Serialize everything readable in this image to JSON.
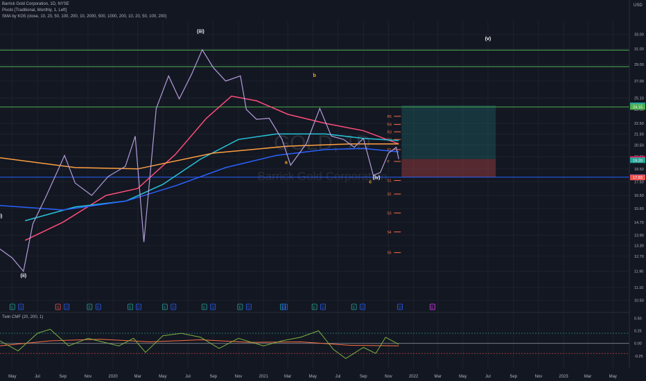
{
  "header": {
    "title": "Barrick Gold Corporation, 1D, NYSE",
    "pivots": "Pivots [Traditional, Monthly, 1, Left]",
    "sma": "SMA by KG5 (close, 10, 20, 50, 100, 200, 10, 2000, 500, 1000, 200, 10, 20, 50, 100, 200)",
    "currency": "USD"
  },
  "watermark": {
    "symbol": "GOLD, 1D",
    "name": "Barrick Gold Corporation"
  },
  "chart_data": {
    "type": "line",
    "title": "Barrick Gold Corporation, 1D, NYSE",
    "x_ticks": [
      "May",
      "Jul",
      "Sep",
      "Nov",
      "2020",
      "Mar",
      "May",
      "Jul",
      "Sep",
      "Nov",
      "2021",
      "Mar",
      "May",
      "Jul",
      "Sep",
      "Nov",
      "2022",
      "Mar",
      "May",
      "Jul",
      "Sep",
      "Nov",
      "2023",
      "Mar",
      "May"
    ],
    "y_ticks": [
      10.5,
      11.1,
      11.9,
      12.7,
      13.3,
      13.9,
      14.7,
      15.6,
      16.5,
      17.5,
      18.5,
      19.5,
      20.5,
      21.5,
      22.5,
      23.9,
      25.1,
      27.0,
      29.0,
      31.0,
      33.0
    ],
    "y_tick_labels": [
      "10.50",
      "11.10",
      "11.90",
      "12.70",
      "13.30",
      "13.90",
      "14.70",
      "15.60",
      "16.50",
      "17.50",
      "18.50",
      "19.50",
      "20.50",
      "21.50",
      "22.50",
      "23.90",
      "25.10",
      "27.00",
      "29.00",
      "31.00",
      "33.00"
    ],
    "ylim": [
      10.0,
      35.0
    ],
    "scale": "log",
    "price_series": [
      {
        "date": "2019-04-01",
        "close": 13.1
      },
      {
        "date": "2019-05-01",
        "close": 12.6
      },
      {
        "date": "2019-05-28",
        "close": 11.9
      },
      {
        "date": "2019-06-20",
        "close": 14.6
      },
      {
        "date": "2019-07-20",
        "close": 16.3
      },
      {
        "date": "2019-08-20",
        "close": 18.4
      },
      {
        "date": "2019-09-05",
        "close": 19.6
      },
      {
        "date": "2019-10-01",
        "close": 17.4
      },
      {
        "date": "2019-11-10",
        "close": 16.5
      },
      {
        "date": "2019-12-20",
        "close": 17.9
      },
      {
        "date": "2020-01-31",
        "close": 18.7
      },
      {
        "date": "2020-02-24",
        "close": 21.3
      },
      {
        "date": "2020-03-16",
        "close": 13.5
      },
      {
        "date": "2020-04-15",
        "close": 24.0
      },
      {
        "date": "2020-05-15",
        "close": 27.6
      },
      {
        "date": "2020-06-10",
        "close": 25.0
      },
      {
        "date": "2020-07-10",
        "close": 27.8
      },
      {
        "date": "2020-08-05",
        "close": 30.9
      },
      {
        "date": "2020-09-01",
        "close": 28.6
      },
      {
        "date": "2020-10-01",
        "close": 27.0
      },
      {
        "date": "2020-11-06",
        "close": 27.6
      },
      {
        "date": "2020-11-20",
        "close": 23.9
      },
      {
        "date": "2020-12-15",
        "close": 22.9
      },
      {
        "date": "2021-01-15",
        "close": 23.0
      },
      {
        "date": "2021-02-15",
        "close": 21.0
      },
      {
        "date": "2021-03-08",
        "close": 18.8
      },
      {
        "date": "2021-04-15",
        "close": 20.6
      },
      {
        "date": "2021-05-18",
        "close": 24.0
      },
      {
        "date": "2021-06-15",
        "close": 21.3
      },
      {
        "date": "2021-07-15",
        "close": 21.0
      },
      {
        "date": "2021-08-10",
        "close": 20.3
      },
      {
        "date": "2021-09-01",
        "close": 21.1
      },
      {
        "date": "2021-09-25",
        "close": 18.0
      },
      {
        "date": "2021-10-12",
        "close": 18.2
      },
      {
        "date": "2021-11-01",
        "close": 19.8
      },
      {
        "date": "2021-11-20",
        "close": 20.3
      },
      {
        "date": "2021-11-26",
        "close": 19.3
      }
    ],
    "sma_lines": [
      {
        "color": "#ff4d7a",
        "points": [
          {
            "date": "2019-06-01",
            "close": 13.6
          },
          {
            "date": "2019-09-01",
            "close": 14.7
          },
          {
            "date": "2019-12-15",
            "close": 16.5
          },
          {
            "date": "2020-03-01",
            "close": 17.0
          },
          {
            "date": "2020-06-01",
            "close": 19.7
          },
          {
            "date": "2020-08-15",
            "close": 23.0
          },
          {
            "date": "2020-10-15",
            "close": 25.3
          },
          {
            "date": "2020-12-15",
            "close": 24.8
          },
          {
            "date": "2021-03-01",
            "close": 23.4
          },
          {
            "date": "2021-06-01",
            "close": 22.5
          },
          {
            "date": "2021-09-01",
            "close": 21.8
          },
          {
            "date": "2021-11-26",
            "close": 20.6
          }
        ]
      },
      {
        "color": "#26c6da",
        "points": [
          {
            "date": "2019-06-01",
            "close": 14.8
          },
          {
            "date": "2019-10-01",
            "close": 15.7
          },
          {
            "date": "2020-02-01",
            "close": 16.1
          },
          {
            "date": "2020-05-01",
            "close": 17.3
          },
          {
            "date": "2020-08-01",
            "close": 19.3
          },
          {
            "date": "2020-11-01",
            "close": 21.0
          },
          {
            "date": "2021-02-01",
            "close": 21.5
          },
          {
            "date": "2021-06-01",
            "close": 21.5
          },
          {
            "date": "2021-09-01",
            "close": 21.1
          },
          {
            "date": "2021-11-26",
            "close": 20.9
          }
        ]
      },
      {
        "color": "#2962ff",
        "points": [
          {
            "date": "2019-04-01",
            "close": 15.8
          },
          {
            "date": "2019-09-01",
            "close": 15.5
          },
          {
            "date": "2020-02-01",
            "close": 16.1
          },
          {
            "date": "2020-06-01",
            "close": 17.2
          },
          {
            "date": "2020-10-01",
            "close": 18.6
          },
          {
            "date": "2021-02-01",
            "close": 19.6
          },
          {
            "date": "2021-06-01",
            "close": 20.1
          },
          {
            "date": "2021-09-01",
            "close": 20.2
          },
          {
            "date": "2021-11-26",
            "close": 19.9
          }
        ]
      },
      {
        "color": "#ffa040",
        "points": [
          {
            "date": "2019-04-01",
            "close": 19.4
          },
          {
            "date": "2019-10-01",
            "close": 18.6
          },
          {
            "date": "2020-03-01",
            "close": 18.5
          },
          {
            "date": "2020-09-01",
            "close": 19.8
          },
          {
            "date": "2021-03-01",
            "close": 20.4
          },
          {
            "date": "2021-08-01",
            "close": 20.6
          },
          {
            "date": "2021-11-26",
            "close": 20.6
          }
        ]
      }
    ],
    "horizontal_lines": [
      {
        "price": 30.84,
        "color": "#4caf50",
        "label": "30.84"
      },
      {
        "price": 28.72,
        "color": "#4caf50",
        "label": "28.72"
      },
      {
        "price": 24.15,
        "color": "#4caf50",
        "label": "24.15"
      },
      {
        "price": 17.85,
        "color": "#2962ff",
        "label": "17.85"
      }
    ],
    "pivots": [
      {
        "label": "R5",
        "price": 23.2
      },
      {
        "label": "R4",
        "price": 22.4
      },
      {
        "label": "R3",
        "price": 21.7
      },
      {
        "label": "R2",
        "price": 21.0
      },
      {
        "label": "R1",
        "price": 20.1
      },
      {
        "label": "P",
        "price": 19.1
      },
      {
        "label": "S1",
        "price": 17.6
      },
      {
        "label": "S2",
        "price": 16.6
      },
      {
        "label": "S3",
        "price": 15.3
      },
      {
        "label": "S4",
        "price": 14.1
      },
      {
        "label": "S5",
        "price": 12.9
      }
    ],
    "position": {
      "start": "2021-12-03",
      "end": "2022-07-20",
      "target": 24.32,
      "entry": 19.3,
      "stop": 17.83
    },
    "price_labels": [
      {
        "price": 24.32,
        "label": "24.32",
        "color": "#26a69a"
      },
      {
        "price": 24.15,
        "label": "24.15",
        "color": "#4caf50"
      },
      {
        "price": 19.3,
        "label": "19.30",
        "color": "#e91e63"
      },
      {
        "price": 19.2,
        "label": "19.20",
        "color": "#26a69a"
      },
      {
        "price": 17.85,
        "label": "17.85",
        "color": "#2962ff"
      },
      {
        "price": 17.83,
        "label": "17.83",
        "color": "#ef5350"
      }
    ],
    "wave_labels": [
      {
        "text": "(i)",
        "date": "2019-04-01",
        "price": 15.0,
        "color": "#ffffff"
      },
      {
        "text": "(ii)",
        "date": "2019-05-28",
        "price": 11.6,
        "color": "#ffffff"
      },
      {
        "text": "(iii)",
        "date": "2020-08-01",
        "price": 33.2,
        "color": "#ffffff"
      },
      {
        "text": "a",
        "date": "2021-02-25",
        "price": 18.9,
        "color": "#ffa726"
      },
      {
        "text": "b",
        "date": "2021-05-05",
        "price": 27.5,
        "color": "#ffa726"
      },
      {
        "text": "c",
        "date": "2021-09-18",
        "price": 17.4,
        "color": "#ffa726"
      },
      {
        "text": "(iv)",
        "date": "2021-10-03",
        "price": 17.7,
        "color": "#ffffff"
      },
      {
        "text": "(v)",
        "date": "2022-07-01",
        "price": 32.2,
        "color": "#ffffff"
      }
    ],
    "event_markers": [
      {
        "text": "E",
        "date": "2019-05-01",
        "color": "#26a69a"
      },
      {
        "text": "D",
        "date": "2019-05-22",
        "color": "#2962ff"
      },
      {
        "text": "S",
        "date": "2019-08-20",
        "color": "#ef5350"
      },
      {
        "text": "D",
        "date": "2019-09-10",
        "color": "#2962ff"
      },
      {
        "text": "E",
        "date": "2019-11-05",
        "color": "#26a69a"
      },
      {
        "text": "D",
        "date": "2019-11-26",
        "color": "#2962ff"
      },
      {
        "text": "E",
        "date": "2020-02-12",
        "color": "#26a69a"
      },
      {
        "text": "D",
        "date": "2020-03-03",
        "color": "#2962ff"
      },
      {
        "text": "E",
        "date": "2020-05-06",
        "color": "#26a69a"
      },
      {
        "text": "D",
        "date": "2020-05-27",
        "color": "#2962ff"
      },
      {
        "text": "E",
        "date": "2020-08-10",
        "color": "#26a69a"
      },
      {
        "text": "D",
        "date": "2020-08-31",
        "color": "#2962ff"
      },
      {
        "text": "E",
        "date": "2020-11-05",
        "color": "#26a69a"
      },
      {
        "text": "D",
        "date": "2020-11-26",
        "color": "#2962ff"
      },
      {
        "text": "E",
        "date": "2021-02-17",
        "color": "#26a69a"
      },
      {
        "text": "D",
        "date": "2021-02-22",
        "color": "#2962ff"
      },
      {
        "text": "E",
        "date": "2021-05-05",
        "color": "#26a69a"
      },
      {
        "text": "D",
        "date": "2021-05-26",
        "color": "#2962ff"
      },
      {
        "text": "E",
        "date": "2021-08-09",
        "color": "#26a69a"
      },
      {
        "text": "D",
        "date": "2021-08-30",
        "color": "#2962ff"
      },
      {
        "text": "D",
        "date": "2021-11-29",
        "color": "#2962ff"
      },
      {
        "text": "E",
        "date": "2022-02-16",
        "color": "#e040fb"
      }
    ],
    "cmf": {
      "title": "Twin CMF (20, 200, 1)",
      "y_ticks": [
        0.5,
        0.25,
        0.0,
        -0.25
      ],
      "y_tick_labels": [
        "0.50",
        "0.25",
        "0.00",
        "-0.25"
      ],
      "ylim": [
        -0.5,
        0.6
      ],
      "fast": [
        {
          "date": "2019-04-01",
          "value": 0.05
        },
        {
          "date": "2019-05-15",
          "value": -0.15
        },
        {
          "date": "2019-07-01",
          "value": 0.2
        },
        {
          "date": "2019-08-01",
          "value": 0.28
        },
        {
          "date": "2019-09-15",
          "value": -0.05
        },
        {
          "date": "2019-11-01",
          "value": 0.1
        },
        {
          "date": "2020-01-15",
          "value": -0.05
        },
        {
          "date": "2020-02-20",
          "value": 0.1
        },
        {
          "date": "2020-03-20",
          "value": -0.18
        },
        {
          "date": "2020-05-01",
          "value": 0.15
        },
        {
          "date": "2020-06-15",
          "value": 0.2
        },
        {
          "date": "2020-08-01",
          "value": 0.12
        },
        {
          "date": "2020-09-15",
          "value": -0.1
        },
        {
          "date": "2020-11-01",
          "value": 0.1
        },
        {
          "date": "2021-01-01",
          "value": -0.05
        },
        {
          "date": "2021-02-15",
          "value": 0.05
        },
        {
          "date": "2021-04-01",
          "value": 0.12
        },
        {
          "date": "2021-05-15",
          "value": 0.25
        },
        {
          "date": "2021-06-20",
          "value": -0.12
        },
        {
          "date": "2021-07-20",
          "value": -0.3
        },
        {
          "date": "2021-09-01",
          "value": -0.08
        },
        {
          "date": "2021-10-01",
          "value": -0.2
        },
        {
          "date": "2021-10-25",
          "value": 0.12
        },
        {
          "date": "2021-11-26",
          "value": -0.02
        }
      ],
      "slow": [
        {
          "date": "2019-04-01",
          "value": -0.05
        },
        {
          "date": "2019-08-01",
          "value": 0.05
        },
        {
          "date": "2019-12-01",
          "value": 0.08
        },
        {
          "date": "2020-04-01",
          "value": 0.03
        },
        {
          "date": "2020-08-01",
          "value": 0.07
        },
        {
          "date": "2020-12-01",
          "value": 0.02
        },
        {
          "date": "2021-04-01",
          "value": 0.03
        },
        {
          "date": "2021-08-01",
          "value": -0.04
        },
        {
          "date": "2021-11-26",
          "value": -0.05
        }
      ]
    }
  }
}
